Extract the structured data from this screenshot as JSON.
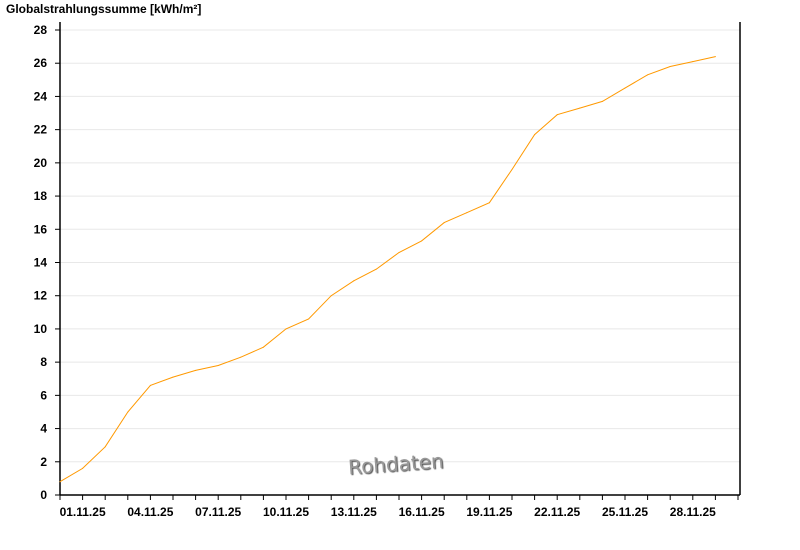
{
  "chart_data": {
    "type": "line",
    "title": "Globalstrahlungssumme [kWh/m²]",
    "xlabel": "",
    "ylabel": "",
    "ylim": [
      0,
      28
    ],
    "yticks": [
      0,
      2,
      4,
      6,
      8,
      10,
      12,
      14,
      16,
      18,
      20,
      22,
      24,
      26,
      28
    ],
    "xtick_labels": [
      "01.11.25",
      "04.11.25",
      "07.11.25",
      "10.11.25",
      "13.11.25",
      "16.11.25",
      "19.11.25",
      "22.11.25",
      "25.11.25",
      "28.11.25"
    ],
    "grid": "horizontal",
    "color": "#ff9900",
    "values": [
      0.8,
      1.6,
      2.9,
      5.0,
      6.6,
      7.1,
      7.5,
      7.8,
      8.3,
      8.9,
      10.0,
      10.6,
      12.0,
      12.9,
      13.6,
      14.6,
      15.3,
      16.4,
      17.0,
      17.6,
      19.6,
      21.7,
      22.9,
      23.3,
      23.7,
      24.5,
      25.3,
      25.8,
      26.1,
      26.4
    ]
  },
  "watermark": "Rohdaten"
}
